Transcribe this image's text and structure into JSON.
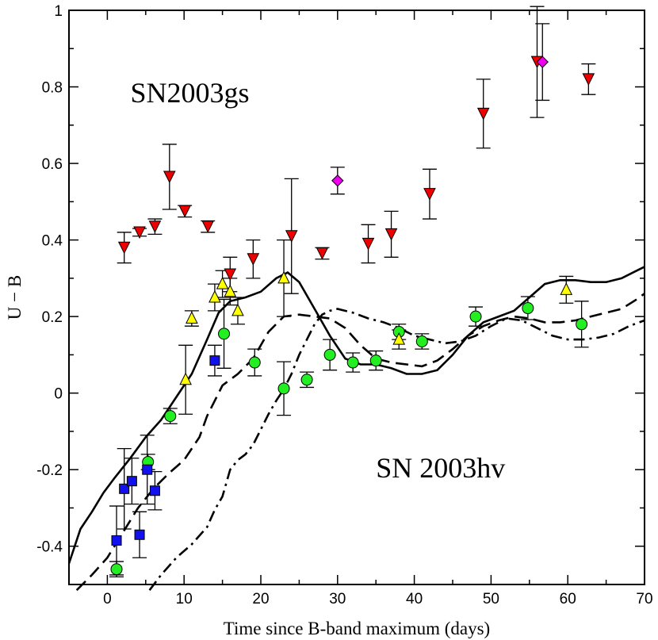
{
  "chart_data": {
    "type": "scatter",
    "xlabel": "Time since B-band maximum (days)",
    "ylabel": "U − B",
    "xlim": [
      -5,
      70
    ],
    "ylim": [
      -0.5,
      1.0
    ],
    "xticks": [
      0,
      10,
      20,
      30,
      40,
      50,
      60,
      70
    ],
    "yticks": [
      -0.4,
      -0.2,
      0,
      0.2,
      0.4,
      0.6,
      0.8,
      1.0
    ],
    "xtick_labels": [
      "0",
      "10",
      "20",
      "30",
      "40",
      "50",
      "60",
      "70"
    ],
    "ytick_labels": [
      "-0.4",
      "-0.2",
      "0",
      "0.2",
      "0.4",
      "0.6",
      "0.8",
      "1"
    ],
    "annotations": [
      {
        "text": "SN2003gs",
        "x": 3,
        "y": 0.76
      },
      {
        "text": "SN 2003hv",
        "x": 35,
        "y": -0.22
      }
    ],
    "series": [
      {
        "name": "SN2003gs (red triangles)",
        "marker": "triangle-down",
        "color": "#ee0000",
        "points": [
          {
            "x": 2.2,
            "y": 0.38,
            "err": 0.04
          },
          {
            "x": 4.2,
            "y": 0.42,
            "err": 0.01
          },
          {
            "x": 6.2,
            "y": 0.435,
            "err": 0.02
          },
          {
            "x": 8.1,
            "y": 0.565,
            "err": 0.085
          },
          {
            "x": 10.1,
            "y": 0.475,
            "err": 0.015
          },
          {
            "x": 13.1,
            "y": 0.435,
            "err": 0.015
          },
          {
            "x": 16.0,
            "y": 0.31,
            "err": 0.045
          },
          {
            "x": 19.0,
            "y": 0.35,
            "err": 0.05
          },
          {
            "x": 24.0,
            "y": 0.41,
            "err": 0.15
          },
          {
            "x": 28.0,
            "y": 0.365,
            "err": 0.015
          },
          {
            "x": 34.0,
            "y": 0.39,
            "err": 0.05
          },
          {
            "x": 37.0,
            "y": 0.415,
            "err": 0.06
          },
          {
            "x": 42.0,
            "y": 0.52,
            "err": 0.065
          },
          {
            "x": 49.0,
            "y": 0.73,
            "err": 0.09
          },
          {
            "x": 56.0,
            "y": 0.865,
            "err": 0.145
          },
          {
            "x": 62.7,
            "y": 0.82,
            "err": 0.04
          }
        ]
      },
      {
        "name": "SN2003gs (magenta diamonds)",
        "marker": "diamond",
        "color": "#ee00ee",
        "points": [
          {
            "x": 30.0,
            "y": 0.555,
            "err": 0.035
          },
          {
            "x": 56.7,
            "y": 0.865,
            "err": 0.1
          }
        ]
      },
      {
        "name": "SN 2003hv (green circles)",
        "marker": "circle",
        "color": "#22ee22",
        "points": [
          {
            "x": 1.2,
            "y": -0.46,
            "err": 0.02
          },
          {
            "x": 5.3,
            "y": -0.18,
            "err": 0.02
          },
          {
            "x": 8.2,
            "y": -0.06,
            "err": 0.02
          },
          {
            "x": 15.2,
            "y": 0.155,
            "err": 0.09
          },
          {
            "x": 19.2,
            "y": 0.08,
            "err": 0.035
          },
          {
            "x": 23.0,
            "y": 0.012,
            "err": 0.07
          },
          {
            "x": 26.0,
            "y": 0.035,
            "err": 0.02
          },
          {
            "x": 29.0,
            "y": 0.1,
            "err": 0.04
          },
          {
            "x": 32.0,
            "y": 0.08,
            "err": 0.025
          },
          {
            "x": 35.0,
            "y": 0.085,
            "err": 0.025
          },
          {
            "x": 38.0,
            "y": 0.16,
            "err": 0.02
          },
          {
            "x": 41.0,
            "y": 0.135,
            "err": 0.02
          },
          {
            "x": 48.0,
            "y": 0.2,
            "err": 0.025
          },
          {
            "x": 54.8,
            "y": 0.222,
            "err": 0.03
          },
          {
            "x": 61.8,
            "y": 0.18,
            "err": 0.06
          }
        ]
      },
      {
        "name": "SN 2003hv (blue squares)",
        "marker": "square",
        "color": "#1111ee",
        "points": [
          {
            "x": 1.2,
            "y": -0.385,
            "err": 0.09
          },
          {
            "x": 2.2,
            "y": -0.25,
            "err": 0.105
          },
          {
            "x": 3.2,
            "y": -0.23,
            "err": 0.06
          },
          {
            "x": 4.2,
            "y": -0.37,
            "err": 0.06
          },
          {
            "x": 5.2,
            "y": -0.2,
            "err": 0.09
          },
          {
            "x": 6.2,
            "y": -0.255,
            "err": 0.05
          },
          {
            "x": 14.0,
            "y": 0.085,
            "err": 0.04
          }
        ]
      },
      {
        "name": "SN 2003hv (yellow triangles)",
        "marker": "triangle-up",
        "color": "#ffff00",
        "points": [
          {
            "x": 10.2,
            "y": 0.035,
            "err": 0.09
          },
          {
            "x": 11.0,
            "y": 0.195,
            "err": 0.02
          },
          {
            "x": 14.0,
            "y": 0.25,
            "err": 0.035
          },
          {
            "x": 15.0,
            "y": 0.285,
            "err": 0.035
          },
          {
            "x": 16.0,
            "y": 0.265,
            "err": 0.035
          },
          {
            "x": 17.0,
            "y": 0.215,
            "err": 0.035
          },
          {
            "x": 23.0,
            "y": 0.3,
            "err": 0.1
          },
          {
            "x": 38.0,
            "y": 0.14,
            "err": 0.025
          },
          {
            "x": 59.8,
            "y": 0.27,
            "err": 0.035
          }
        ]
      }
    ],
    "curves": [
      {
        "name": "model-solid",
        "dash": "solid",
        "points": [
          [
            -5,
            -0.445
          ],
          [
            -3.5,
            -0.355
          ],
          [
            -2,
            -0.31
          ],
          [
            -0.5,
            -0.26
          ],
          [
            1,
            -0.22
          ],
          [
            3,
            -0.17
          ],
          [
            5,
            -0.115
          ],
          [
            7,
            -0.07
          ],
          [
            9,
            -0.01
          ],
          [
            11,
            0.05
          ],
          [
            13,
            0.14
          ],
          [
            14.5,
            0.21
          ],
          [
            16,
            0.24
          ],
          [
            18,
            0.25
          ],
          [
            20,
            0.265
          ],
          [
            22,
            0.3
          ],
          [
            23.5,
            0.315
          ],
          [
            25,
            0.29
          ],
          [
            27,
            0.22
          ],
          [
            29,
            0.15
          ],
          [
            31,
            0.09
          ],
          [
            33,
            0.075
          ],
          [
            35,
            0.075
          ],
          [
            37,
            0.065
          ],
          [
            39,
            0.05
          ],
          [
            41,
            0.05
          ],
          [
            43,
            0.06
          ],
          [
            45,
            0.1
          ],
          [
            47,
            0.15
          ],
          [
            49,
            0.185
          ],
          [
            51,
            0.2
          ],
          [
            53,
            0.215
          ],
          [
            55,
            0.25
          ],
          [
            57,
            0.285
          ],
          [
            59,
            0.295
          ],
          [
            61,
            0.295
          ],
          [
            63,
            0.29
          ],
          [
            65,
            0.29
          ],
          [
            67,
            0.3
          ],
          [
            69,
            0.32
          ],
          [
            70,
            0.33
          ]
        ]
      },
      {
        "name": "model-dashed",
        "dash": "dashed",
        "points": [
          [
            -4,
            -0.515
          ],
          [
            -2,
            -0.475
          ],
          [
            0,
            -0.43
          ],
          [
            2,
            -0.365
          ],
          [
            4,
            -0.3
          ],
          [
            6,
            -0.25
          ],
          [
            8,
            -0.21
          ],
          [
            10,
            -0.175
          ],
          [
            12,
            -0.115
          ],
          [
            13,
            -0.06
          ],
          [
            14,
            -0.02
          ],
          [
            15,
            0.02
          ],
          [
            17,
            0.05
          ],
          [
            19,
            0.09
          ],
          [
            21,
            0.16
          ],
          [
            23,
            0.2
          ],
          [
            25,
            0.205
          ],
          [
            27,
            0.2
          ],
          [
            29,
            0.195
          ],
          [
            31,
            0.17
          ],
          [
            33,
            0.125
          ],
          [
            35,
            0.09
          ],
          [
            37,
            0.08
          ],
          [
            39,
            0.075
          ],
          [
            41,
            0.07
          ],
          [
            43,
            0.085
          ],
          [
            45,
            0.115
          ],
          [
            47,
            0.15
          ],
          [
            49,
            0.175
          ],
          [
            51,
            0.19
          ],
          [
            53,
            0.2
          ],
          [
            55,
            0.195
          ],
          [
            57,
            0.185
          ],
          [
            59,
            0.185
          ],
          [
            61,
            0.19
          ],
          [
            63,
            0.2
          ],
          [
            65,
            0.21
          ],
          [
            67,
            0.22
          ],
          [
            69,
            0.245
          ],
          [
            70,
            0.26
          ]
        ]
      },
      {
        "name": "model-dashdot",
        "dash": "dashdot",
        "points": [
          [
            5.5,
            -0.515
          ],
          [
            7,
            -0.475
          ],
          [
            9,
            -0.43
          ],
          [
            11,
            -0.395
          ],
          [
            13,
            -0.35
          ],
          [
            14,
            -0.305
          ],
          [
            15,
            -0.27
          ],
          [
            16,
            -0.2
          ],
          [
            17,
            -0.175
          ],
          [
            18,
            -0.16
          ],
          [
            19,
            -0.135
          ],
          [
            20,
            -0.095
          ],
          [
            21,
            -0.055
          ],
          [
            22,
            -0.02
          ],
          [
            23,
            0.01
          ],
          [
            24,
            0.05
          ],
          [
            25,
            0.1
          ],
          [
            26,
            0.14
          ],
          [
            27,
            0.18
          ],
          [
            28,
            0.205
          ],
          [
            29,
            0.215
          ],
          [
            30,
            0.22
          ],
          [
            32,
            0.21
          ],
          [
            34,
            0.195
          ],
          [
            36,
            0.185
          ],
          [
            38,
            0.17
          ],
          [
            40,
            0.15
          ],
          [
            42,
            0.14
          ],
          [
            44,
            0.13
          ],
          [
            46,
            0.135
          ],
          [
            48,
            0.15
          ],
          [
            50,
            0.175
          ],
          [
            52,
            0.195
          ],
          [
            54,
            0.19
          ],
          [
            56,
            0.17
          ],
          [
            58,
            0.15
          ],
          [
            60,
            0.14
          ],
          [
            62,
            0.14
          ],
          [
            64,
            0.145
          ],
          [
            66,
            0.155
          ],
          [
            68,
            0.175
          ],
          [
            70,
            0.19
          ]
        ]
      }
    ]
  }
}
